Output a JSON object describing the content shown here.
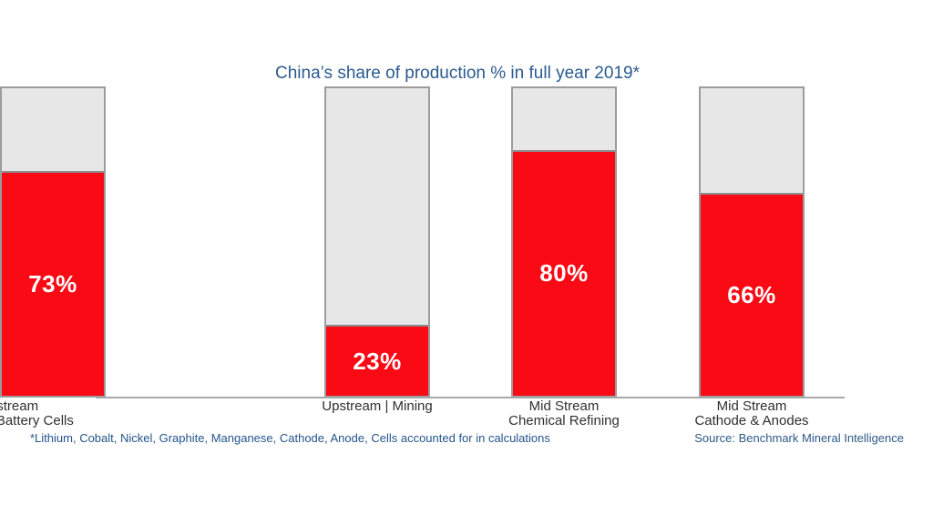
{
  "chart_data": {
    "type": "bar",
    "title": "China’s share of production % in full year 2019*",
    "categories": [
      "Upstream | Mining",
      "Mid Stream\nChemical Refining",
      "Mid Stream\nCathode & Anodes",
      "Downstream\nLithium ion Battery Cells"
    ],
    "values": [
      23,
      80,
      66,
      73
    ],
    "value_labels": [
      "23%",
      "80%",
      "66%",
      "73%"
    ],
    "ylim": [
      0,
      100
    ],
    "grid": false,
    "legend": "none",
    "footnote": "*Lithium, Cobalt, Nickel, Graphite, Manganese, Cathode, Anode, Cells accounted for in calculations",
    "source": "Source: Benchmark Mineral Intelligence",
    "colors": {
      "bar_fill": "#fa0a14",
      "bar_track": "#e8e7e7",
      "bar_border": "#9c9c9c",
      "title_text": "#2b5a8f",
      "footnote_text": "#24548c",
      "category_text": "#2f2f2f",
      "value_text": "#ffffff",
      "axis_line": "#a8a8a8"
    }
  }
}
